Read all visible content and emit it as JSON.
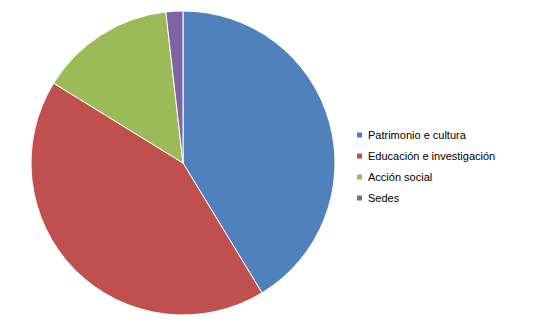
{
  "chart_data": {
    "type": "pie",
    "categories": [
      "Patrimonio e cultura",
      "Educación e investigación",
      "Acción social",
      "Sedes"
    ],
    "values": [
      41.3,
      42.5,
      14.4,
      1.8
    ],
    "colors": [
      "#4f81bd",
      "#c0504d",
      "#9bbb59",
      "#8064a2"
    ],
    "legend": "right",
    "data_labels": false
  }
}
